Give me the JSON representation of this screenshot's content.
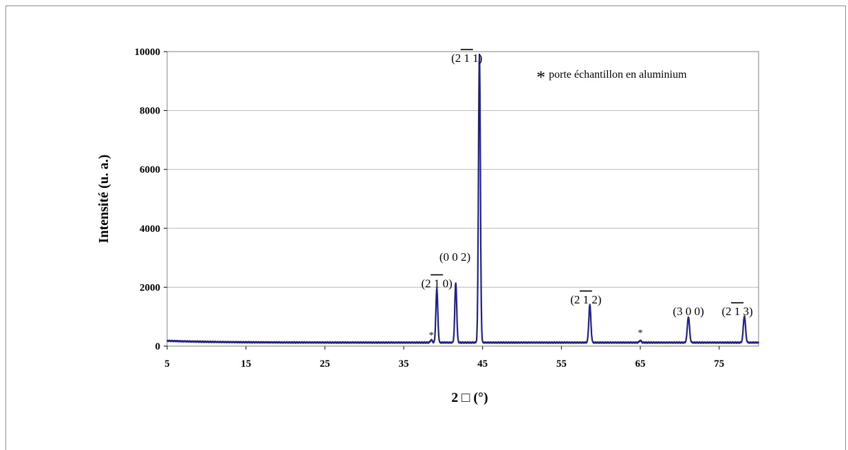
{
  "chart_data": {
    "type": "line",
    "xlabel": "2 □ (°)",
    "ylabel": "Intensité (u. a.)",
    "xlim": [
      5,
      80
    ],
    "ylim": [
      0,
      10000
    ],
    "x_ticks": [
      5,
      15,
      25,
      35,
      45,
      55,
      65,
      75
    ],
    "y_ticks": [
      0,
      2000,
      4000,
      6000,
      8000,
      10000
    ],
    "grid": "horizontal",
    "line_color": "#1f1f8f",
    "baseline": 120,
    "peaks": [
      {
        "x": 38.5,
        "y": 210,
        "width": 0.12
      },
      {
        "x": 39.2,
        "y": 1950,
        "width": 0.12
      },
      {
        "x": 41.6,
        "y": 2150,
        "width": 0.12
      },
      {
        "x": 44.6,
        "y": 9900,
        "width": 0.12
      },
      {
        "x": 58.6,
        "y": 1400,
        "width": 0.13
      },
      {
        "x": 65.0,
        "y": 190,
        "width": 0.12
      },
      {
        "x": 71.1,
        "y": 990,
        "width": 0.14
      },
      {
        "x": 78.2,
        "y": 1020,
        "width": 0.14
      }
    ],
    "peak_labels": [
      {
        "text": "(2 1 0)",
        "x": 39.2,
        "y": 2000,
        "overbar": "1"
      },
      {
        "text": "(0 0 2)",
        "x": 41.5,
        "y": 2900,
        "overbar": ""
      },
      {
        "text": "(2 1 1)",
        "x": 43.0,
        "y": 9650,
        "overbar": "1"
      },
      {
        "text": "(2 1 2)",
        "x": 58.1,
        "y": 1450,
        "overbar": "1"
      },
      {
        "text": "(3 0 0)",
        "x": 71.1,
        "y": 1050,
        "overbar": ""
      },
      {
        "text": "(2 1 3)",
        "x": 77.3,
        "y": 1050,
        "overbar": "1"
      }
    ],
    "star_markers": [
      {
        "text": "*",
        "x": 38.5,
        "y": 180
      },
      {
        "text": "*",
        "x": 65.0,
        "y": 260
      }
    ],
    "legend": {
      "symbol": "*",
      "text": "porte échantillon en aluminium",
      "position": "top-right"
    }
  }
}
